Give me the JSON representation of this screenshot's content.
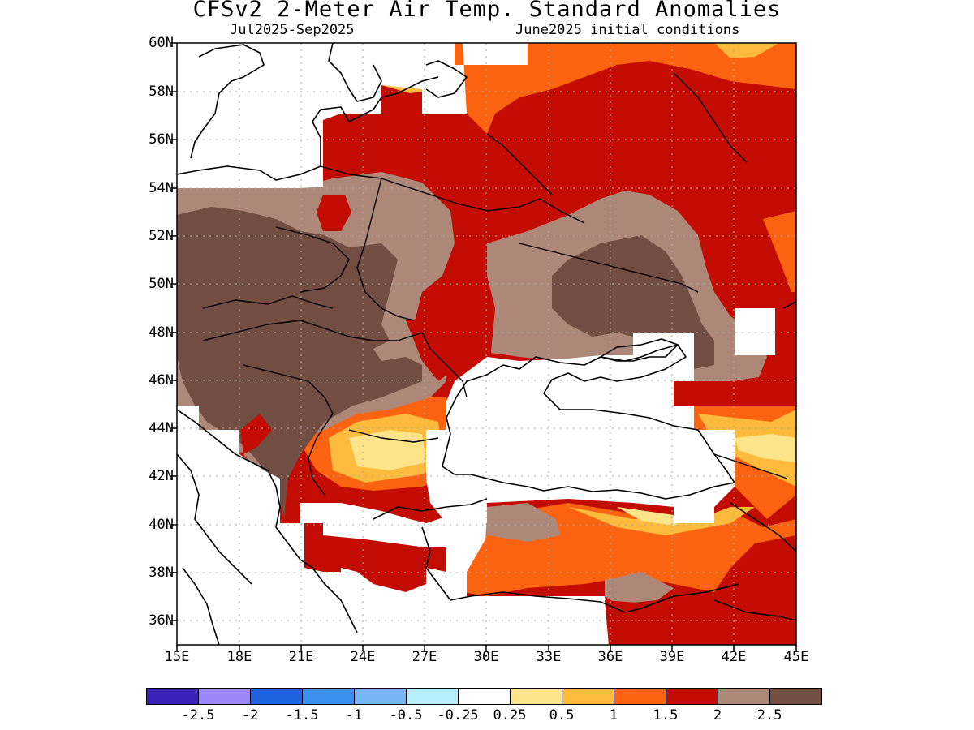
{
  "title": "CFSv2 2-Meter Air Temp. Standard Anomalies",
  "period": "Jul2025-Sep2025",
  "init": "June2025 initial conditions",
  "lat_labels": [
    "60N",
    "58N",
    "56N",
    "54N",
    "52N",
    "50N",
    "48N",
    "46N",
    "44N",
    "42N",
    "40N",
    "38N",
    "36N"
  ],
  "lon_labels": [
    "15E",
    "18E",
    "21E",
    "24E",
    "27E",
    "30E",
    "33E",
    "36E",
    "39E",
    "42E",
    "45E"
  ],
  "colorbar": {
    "colors": [
      "#3a22b8",
      "#9b87f7",
      "#1f62e0",
      "#3a90ee",
      "#77b6f5",
      "#b5eefa",
      "#ffffff",
      "#fde38a",
      "#fcbb3c",
      "#fb6310",
      "#c30d04",
      "#ad8777",
      "#724d41"
    ],
    "labels": [
      "-2.5",
      "-2",
      "-1.5",
      "-1",
      "-0.5",
      "-0.25",
      "0.25",
      "0.5",
      "1",
      "1.5",
      "2",
      "2.5"
    ]
  },
  "map_colors": {
    "land_white": "#ffffff",
    "border": "#000000",
    "grid": "#aaaaaa"
  }
}
